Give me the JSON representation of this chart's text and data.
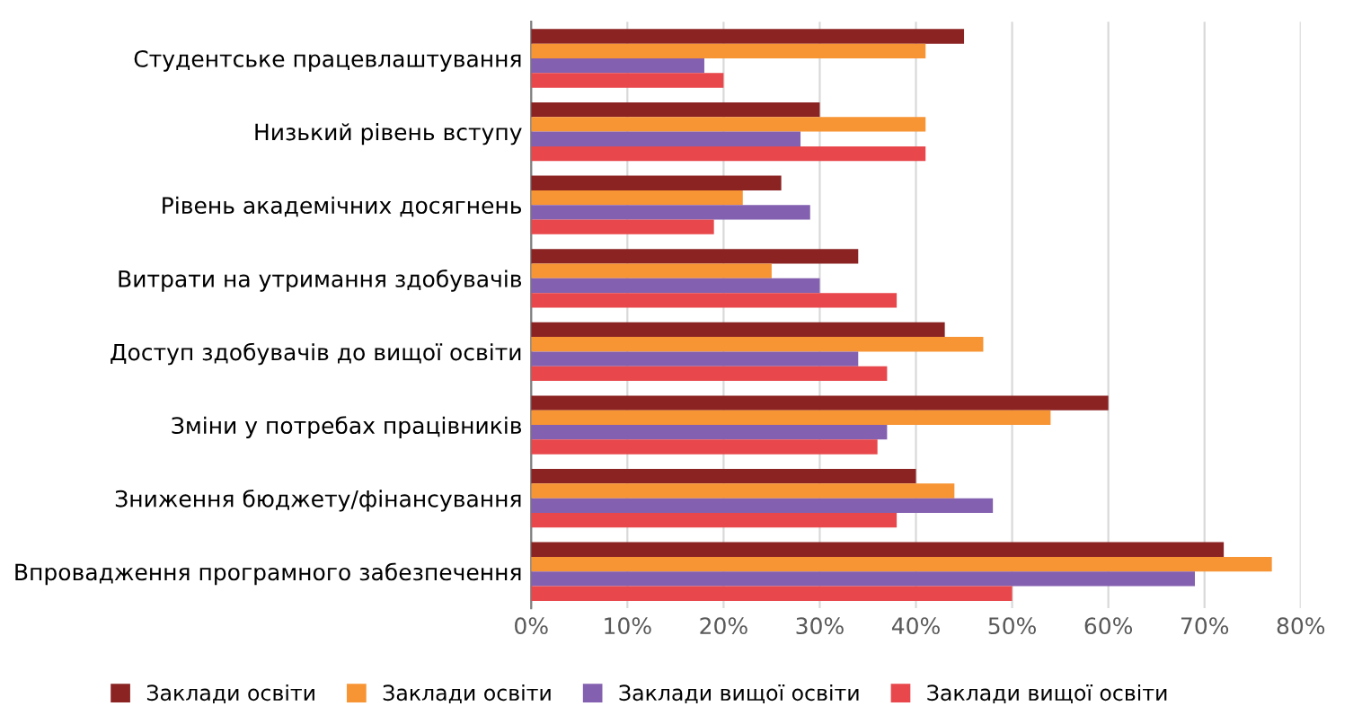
{
  "chart_data": {
    "type": "bar",
    "orientation": "horizontal",
    "categories": [
      "Студентське працевлаштування",
      "Низький рівень вступу",
      "Рівень академічних досягнень",
      "Витрати на утримання здобувачів",
      "Доступ здобувачів до вищої освіти",
      "Зміни у потребах працівників",
      "Зниження бюджету/фінансування",
      "Впровадження програмного забезпечення"
    ],
    "series": [
      {
        "name": "Заклади освіти",
        "color": "#8b2323",
        "values": [
          45,
          30,
          26,
          34,
          43,
          60,
          40,
          72
        ]
      },
      {
        "name": "Заклади освіти",
        "color": "#f79433",
        "values": [
          41,
          41,
          22,
          25,
          47,
          54,
          44,
          77
        ]
      },
      {
        "name": "Заклади вищої освіти",
        "color": "#8460b0",
        "values": [
          18,
          28,
          29,
          30,
          34,
          37,
          48,
          69
        ]
      },
      {
        "name": "Заклади вищої освіти",
        "color": "#e8474b",
        "values": [
          20,
          41,
          19,
          38,
          37,
          36,
          38,
          50
        ]
      }
    ],
    "xlim": [
      0,
      80
    ],
    "xticks": [
      {
        "value": 0,
        "label": "0%"
      },
      {
        "value": 10,
        "label": "10%"
      },
      {
        "value": 20,
        "label": "20%"
      },
      {
        "value": 30,
        "label": "30%"
      },
      {
        "value": 40,
        "label": "40%"
      },
      {
        "value": 50,
        "label": "50%"
      },
      {
        "value": 60,
        "label": "60%"
      },
      {
        "value": 70,
        "label": "70%"
      },
      {
        "value": 80,
        "label": "80%"
      }
    ],
    "grid": "x",
    "legend": "bottom"
  }
}
